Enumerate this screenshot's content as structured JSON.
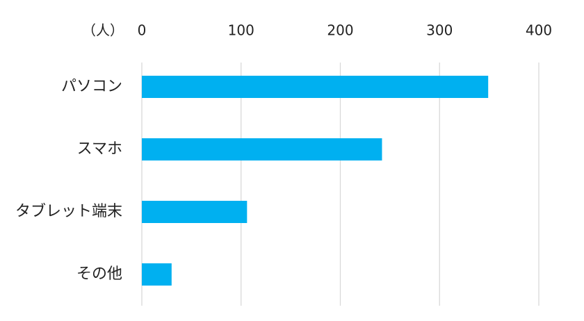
{
  "chart_data": {
    "type": "bar",
    "orientation": "horizontal",
    "xlabel": "（人）",
    "categories": [
      "パソコン",
      "スマホ",
      "タブレット端末",
      "その他"
    ],
    "values": [
      349,
      242,
      106,
      30
    ],
    "color": "#00b0f0",
    "xlim": [
      0,
      400
    ],
    "xticks": [
      0,
      100,
      200,
      300,
      400
    ],
    "grid": true
  }
}
